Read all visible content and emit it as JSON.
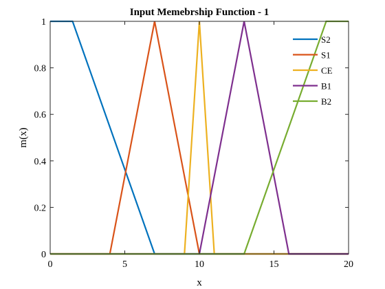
{
  "chart_data": {
    "type": "line",
    "title": "Input Memebrship Function - 1",
    "xlabel": "x",
    "ylabel": "m(x)",
    "xlim": [
      0,
      20
    ],
    "ylim": [
      0,
      1
    ],
    "xticks": [
      0,
      5,
      10,
      15,
      20
    ],
    "yticks": [
      0,
      0.2,
      0.4,
      0.6,
      0.8,
      1
    ],
    "xtick_labels": [
      "0",
      "5",
      "10",
      "15",
      "20"
    ],
    "ytick_labels": [
      "0",
      "0.2",
      "0.4",
      "0.6",
      "0.8",
      "1"
    ],
    "grid": false,
    "legend_position": "top-right",
    "series": [
      {
        "name": "S2",
        "color": "#0072bd",
        "x": [
          0,
          1.5,
          7,
          20
        ],
        "y": [
          1,
          1,
          0,
          0
        ]
      },
      {
        "name": "S1",
        "color": "#d95319",
        "x": [
          0,
          4,
          7,
          10,
          20
        ],
        "y": [
          0,
          0,
          1,
          0,
          0
        ]
      },
      {
        "name": "CE",
        "color": "#edb120",
        "x": [
          0,
          9,
          10,
          11,
          20
        ],
        "y": [
          0,
          0,
          1,
          0,
          0
        ]
      },
      {
        "name": "B1",
        "color": "#7e2f8e",
        "x": [
          0,
          10,
          13,
          16,
          20
        ],
        "y": [
          0,
          0,
          1,
          0,
          0
        ]
      },
      {
        "name": "B2",
        "color": "#77ac30",
        "x": [
          0,
          13,
          18.5,
          20
        ],
        "y": [
          0,
          0,
          1,
          1
        ]
      }
    ]
  }
}
